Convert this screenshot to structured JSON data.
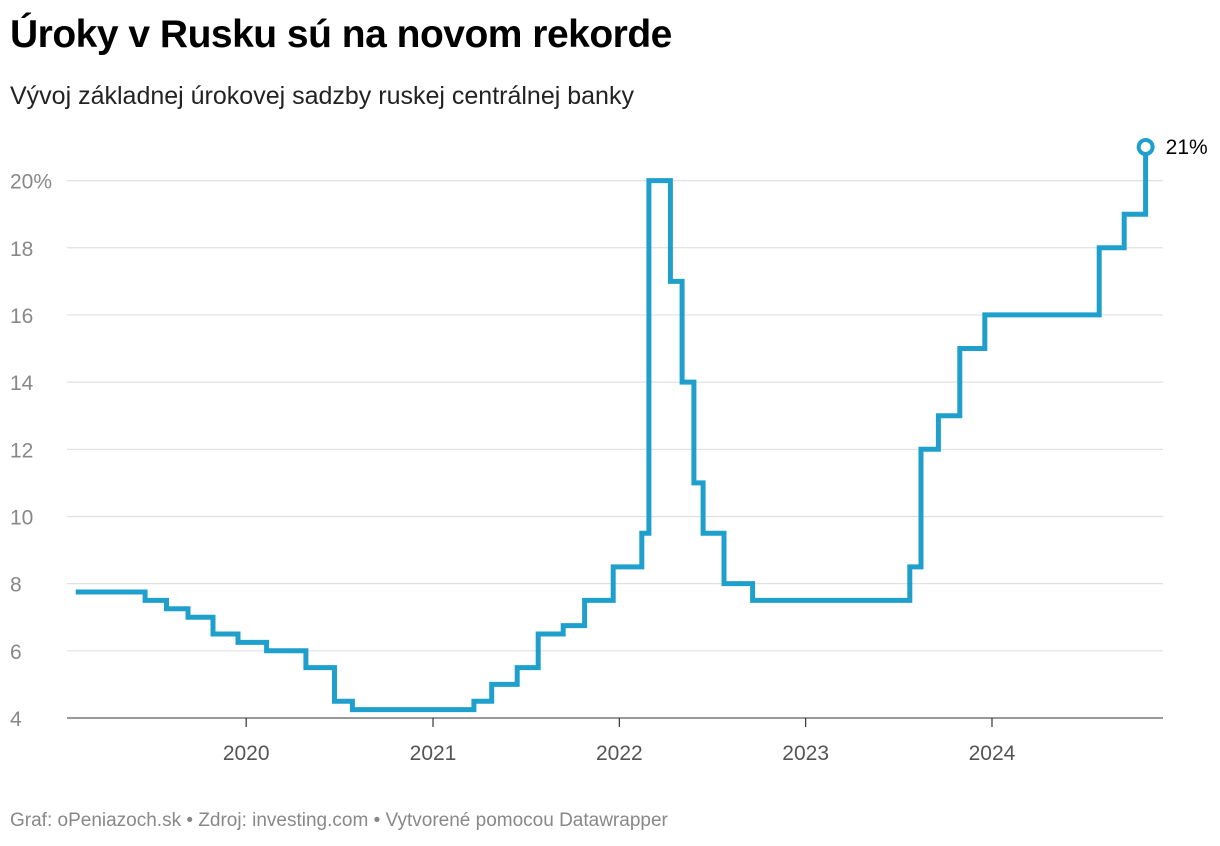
{
  "header": {
    "title": "Úroky v Rusku sú na novom rekorde",
    "subtitle": "Vývoj základnej úrokovej sadzby ruskej centrálnej banky"
  },
  "footer": {
    "credits": "Graf: oPeniazoch.sk • Zdroj: investing.com • Vytvorené pomocou Datawrapper"
  },
  "colors": {
    "line": "#1fa0cc",
    "grid": "#e0e0e0",
    "axis": "#555555"
  },
  "chart_data": {
    "type": "line",
    "step": "after",
    "title": "Úroky v Rusku sú na novom rekorde",
    "subtitle": "Vývoj základnej úrokovej sadzby ruskej centrálnej banky",
    "xlabel": "",
    "ylabel": "",
    "ylim": [
      4,
      21
    ],
    "xlim": [
      "2019-01-15",
      "2024-12-01"
    ],
    "y_ticks": [
      4,
      6,
      8,
      10,
      12,
      14,
      16,
      18,
      20
    ],
    "y_tick_labels": [
      "4",
      "6",
      "8",
      "10",
      "12",
      "14",
      "16",
      "18",
      "20%"
    ],
    "x_ticks": [
      "2020-01-01",
      "2021-01-01",
      "2022-01-01",
      "2023-01-01",
      "2024-01-01"
    ],
    "x_tick_labels": [
      "2020",
      "2021",
      "2022",
      "2023",
      "2024"
    ],
    "grid": true,
    "end_label": "21%",
    "series": [
      {
        "x": [
          "2019-02-01",
          "2019-06-17",
          "2019-07-29",
          "2019-09-09",
          "2019-10-28",
          "2019-12-16",
          "2020-02-10",
          "2020-04-27",
          "2020-06-22",
          "2020-07-27",
          "2021-03-22",
          "2021-04-26",
          "2021-06-15",
          "2021-07-26",
          "2021-09-13",
          "2021-10-25",
          "2021-12-20",
          "2022-02-14",
          "2022-02-28",
          "2022-04-11",
          "2022-05-04",
          "2022-05-27",
          "2022-06-14",
          "2022-07-25",
          "2022-09-19",
          "2023-07-24",
          "2023-08-15",
          "2023-09-18",
          "2023-10-30",
          "2023-12-18",
          "2024-07-29",
          "2024-09-16",
          "2024-10-28"
        ],
        "values": [
          7.75,
          7.5,
          7.25,
          7.0,
          6.5,
          6.25,
          6.0,
          5.5,
          4.5,
          4.25,
          4.5,
          5.0,
          5.5,
          6.5,
          6.75,
          7.5,
          8.5,
          9.5,
          20.0,
          17.0,
          14.0,
          11.0,
          9.5,
          8.0,
          7.5,
          8.5,
          12.0,
          13.0,
          15.0,
          16.0,
          18.0,
          19.0,
          21.0
        ]
      }
    ]
  }
}
